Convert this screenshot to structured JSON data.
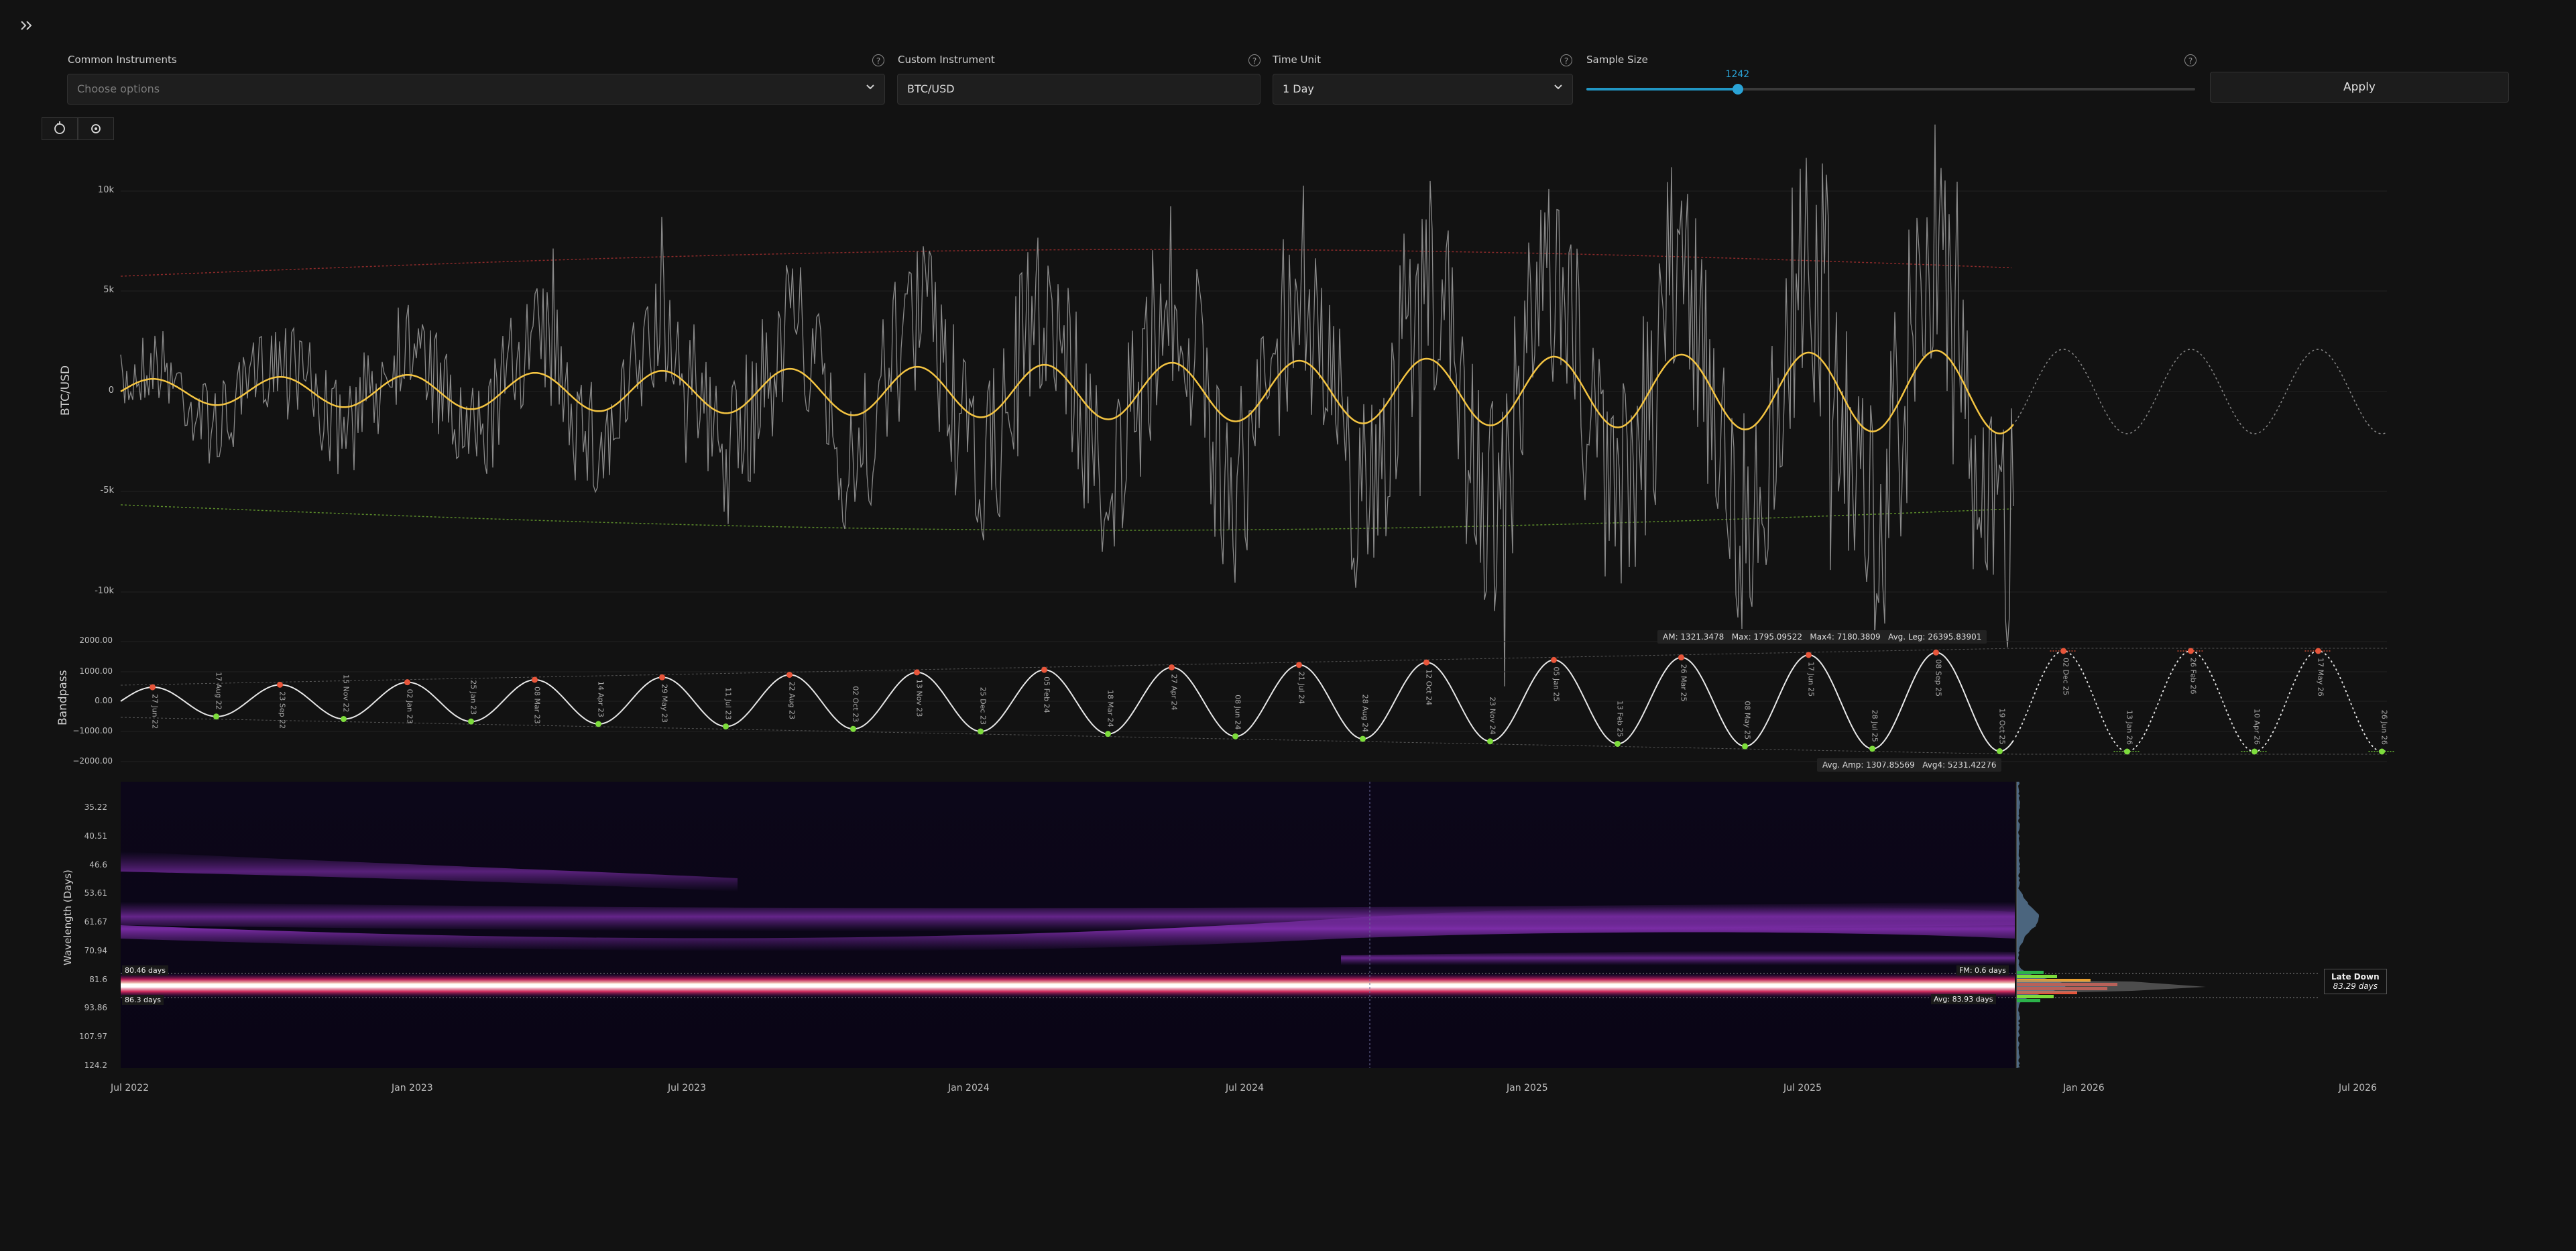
{
  "sidebar": {
    "toggle_icon": "double-chevron-right-icon"
  },
  "controls": {
    "common_instruments": {
      "label": "Common Instruments",
      "placeholder": "Choose options",
      "help": "?"
    },
    "custom_instrument": {
      "label": "Custom Instrument",
      "value": "BTC/USD",
      "help": "?"
    },
    "time_unit": {
      "label": "Time Unit",
      "value": "1 Day",
      "help": "?"
    },
    "sample_size": {
      "label": "Sample Size",
      "value": 1242,
      "value_text": "1242",
      "min": 0,
      "max": 5000,
      "help": "?"
    },
    "apply_label": "Apply",
    "accent": "#2196c4"
  },
  "toolbar": {
    "icons": [
      "reset-icon",
      "settings-icon"
    ]
  },
  "price_panel": {
    "ylabel": "BTC/USD",
    "yticks": [
      "10k",
      "5k",
      "0",
      "-5k",
      "-10k"
    ],
    "colors": {
      "cycle": "#f5c542",
      "series": "#8a8a8a",
      "upper": "#8b2a2a",
      "lower": "#5a8a2a"
    }
  },
  "bandpass_panel": {
    "ylabel": "Bandpass",
    "yticks": [
      "2000.00",
      "1000.00",
      "0.00",
      "−1000.00",
      "−2000.00"
    ],
    "stats_top": {
      "am": "AM: 1321.3478",
      "max": "Max: 1795.09522",
      "max4": "Max4: 7180.3809",
      "avg_leg": "Avg. Leg: 26395.83901"
    },
    "stats_bottom": {
      "avg_amp": "Avg. Amp: 1307.85569",
      "avg4": "Avg4: 5231.42276"
    },
    "peak_labels": [
      "27 Jun 22",
      "17 Aug 22",
      "23 Sep 22",
      "15 Nov 22",
      "02 Jan 23",
      "25 Jan 23",
      "08 Mar 23",
      "14 Apr 23",
      "29 May 23",
      "11 Jul 23",
      "22 Aug 23",
      "02 Oct 23",
      "13 Nov 23",
      "25 Dec 23",
      "05 Feb 24",
      "18 Mar 24",
      "27 Apr 24",
      "08 Jun 24",
      "21 Jul 24",
      "28 Aug 24",
      "12 Oct 24",
      "23 Nov 24",
      "05 Jan 25",
      "13 Feb 25",
      "26 Mar 25",
      "08 May 25",
      "17 Jun 25",
      "28 Jul 25",
      "08 Sep 25",
      "19 Oct 25",
      "02 Dec 25",
      "13 Jan 26",
      "26 Feb 26",
      "10 Apr 26",
      "17 May 26",
      "26 Jun 26"
    ]
  },
  "spectrum_panel": {
    "ylabel": "Wavelength (Days)",
    "yticks": [
      "35.22",
      "40.51",
      "46.6",
      "53.61",
      "61.67",
      "70.94",
      "81.6",
      "93.86",
      "107.97",
      "124.2"
    ],
    "markers": {
      "top": "80.46 days",
      "bottom": "86.3 days"
    },
    "readouts": {
      "fm": "FM: 0.6 days",
      "avg": "Avg: 83.93 days"
    },
    "tooltip": {
      "title": "Late Down",
      "value": "83.29 days"
    }
  },
  "x_axis": {
    "ticks": [
      "Jul 2022",
      "Jan 2023",
      "Jul 2023",
      "Jan 2024",
      "Jul 2024",
      "Jan 2025",
      "Jul 2025",
      "Jan 2026",
      "Jul 2026"
    ]
  }
}
